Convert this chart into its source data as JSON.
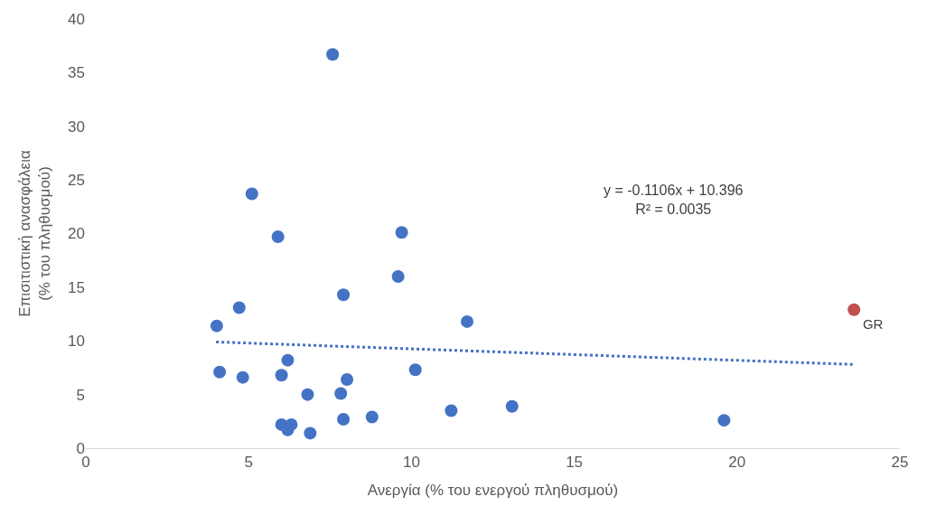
{
  "chart_data": {
    "type": "scatter",
    "xlabel": "Ανεργία (% του ενεργού πληθυσμού)",
    "ylabel": "Επισιτιστική ανασφάλεια\n(% του πληθυσμού)",
    "xlim": [
      0,
      25
    ],
    "xticks": [
      0,
      5,
      10,
      15,
      20,
      25
    ],
    "ylim": [
      0,
      40
    ],
    "yticks": [
      0,
      5,
      10,
      15,
      20,
      25,
      30,
      35,
      40
    ],
    "legend": false,
    "marker": "circle",
    "annotations": [
      "y = -0.1106x + 10.396\nR² = 0.0035"
    ],
    "series": [
      {
        "color": "#4472c4",
        "x": [
          7.58,
          5.1,
          5.9,
          9.7,
          9.59,
          7.91,
          4.71,
          4.02,
          11.71,
          6.2,
          4.11,
          4.82,
          6.01,
          8.02,
          10.12,
          6.81,
          7.83,
          6.01,
          6.31,
          6.2,
          6.89,
          7.91,
          8.79,
          11.22,
          13.09,
          19.6
        ],
        "values": [
          36.7,
          23.7,
          19.7,
          20.1,
          16.0,
          14.3,
          13.1,
          11.4,
          11.8,
          8.2,
          7.1,
          6.6,
          6.8,
          6.4,
          7.3,
          5.0,
          5.1,
          2.2,
          2.2,
          1.7,
          1.4,
          2.7,
          2.9,
          3.5,
          3.9,
          2.6
        ]
      },
      {
        "name": "GR",
        "color": "#c0504d",
        "x": [
          23.59
        ],
        "values": [
          12.9
        ]
      },
      {
        "type": "line",
        "color": "#4472c4",
        "line_style": "dotted",
        "marker": "none",
        "x": [
          4.0,
          23.6
        ],
        "values": [
          9.9,
          7.8
        ]
      }
    ]
  }
}
